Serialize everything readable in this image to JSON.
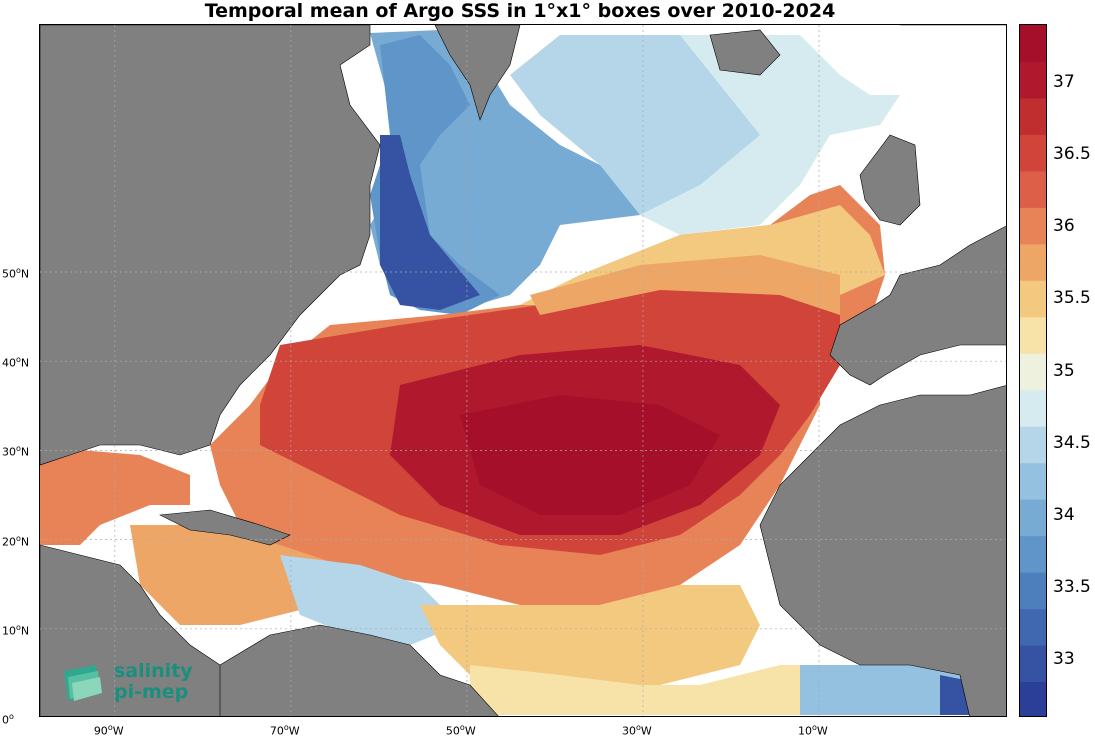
{
  "title": "Temporal mean of Argo SSS in 1°x1° boxes over 2010-2024",
  "lat_ticks": [
    {
      "deg": "50",
      "hemi": "N",
      "lat": 50
    },
    {
      "deg": "40",
      "hemi": "N",
      "lat": 40
    },
    {
      "deg": "30",
      "hemi": "N",
      "lat": 30
    },
    {
      "deg": "20",
      "hemi": "N",
      "lat": 20
    },
    {
      "deg": "10",
      "hemi": "N",
      "lat": 10
    },
    {
      "deg": "0",
      "hemi": "",
      "lat": 0
    }
  ],
  "lon_ticks": [
    {
      "deg": "90",
      "hemi": "W",
      "lon": -90
    },
    {
      "deg": "70",
      "hemi": "W",
      "lon": -70
    },
    {
      "deg": "50",
      "hemi": "W",
      "lon": -50
    },
    {
      "deg": "30",
      "hemi": "W",
      "lon": -30
    },
    {
      "deg": "10",
      "hemi": "W",
      "lon": -10
    }
  ],
  "colorbar": {
    "min": 32.6,
    "max": 37.4,
    "ticks": [
      "33",
      "33.5",
      "34",
      "34.5",
      "35",
      "35.5",
      "36",
      "36.5",
      "37"
    ],
    "colors": [
      "#2b3f98",
      "#3552a3",
      "#4068b0",
      "#4d7fbd",
      "#5f95c9",
      "#77abd4",
      "#93c1df",
      "#b5d6e8",
      "#d6ebef",
      "#edf1dd",
      "#f7e3a8",
      "#f3c980",
      "#eea667",
      "#e78357",
      "#dd5f47",
      "#d1443a",
      "#c12e30",
      "#b0182d",
      "#a50f2a"
    ]
  },
  "land_color": "#808080",
  "logo": {
    "line1": "salinity",
    "line2": "pi-mep"
  }
}
